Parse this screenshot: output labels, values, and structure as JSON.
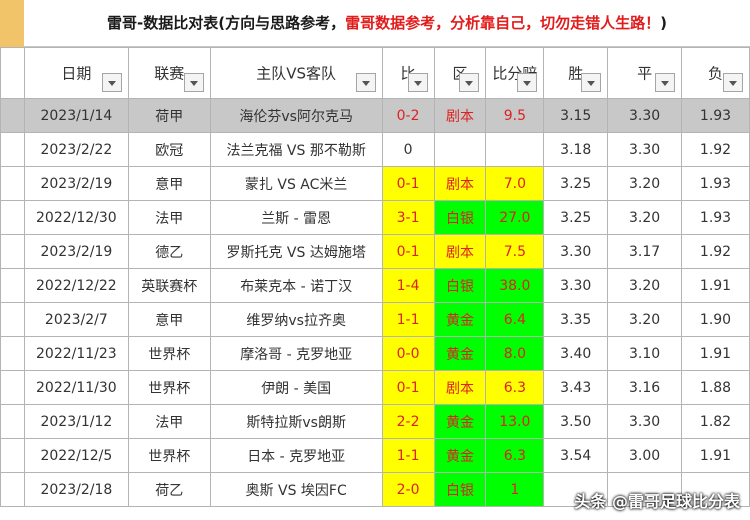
{
  "title": {
    "part1": "雷哥-数据比对表(方向与思路参考，",
    "part2": "雷哥数据参考，分析靠自己，切勿走错人生路！",
    "part3": ")"
  },
  "headers": [
    "日期",
    "联赛",
    "主队VS客队",
    "比",
    "区",
    "比分赔",
    "胜",
    "平",
    "负"
  ],
  "rows": [
    {
      "date": "2023/1/14",
      "league": "荷甲",
      "match": "海伦芬vs阿尔克马",
      "score": "0-2",
      "tag": "剧本",
      "odds": "9.5",
      "w": "3.15",
      "d": "3.30",
      "l": "1.93"
    },
    {
      "date": "2023/2/22",
      "league": "欧冠",
      "match": "法兰克福 VS 那不勒斯",
      "score": "0",
      "tag": "",
      "odds": "",
      "w": "3.18",
      "d": "3.30",
      "l": "1.92"
    },
    {
      "date": "2023/2/19",
      "league": "意甲",
      "match": "蒙扎 VS AC米兰",
      "score": "0-1",
      "tag": "剧本",
      "odds": "7.0",
      "w": "3.25",
      "d": "3.20",
      "l": "1.93"
    },
    {
      "date": "2022/12/30",
      "league": "法甲",
      "match": "兰斯 - 雷恩",
      "score": "3-1",
      "tag": "白银",
      "odds": "27.0",
      "w": "3.25",
      "d": "3.20",
      "l": "1.93"
    },
    {
      "date": "2023/2/19",
      "league": "德乙",
      "match": "罗斯托克 VS 达姆施塔",
      "score": "0-1",
      "tag": "剧本",
      "odds": "7.5",
      "w": "3.30",
      "d": "3.17",
      "l": "1.92"
    },
    {
      "date": "2022/12/22",
      "league": "英联赛杯",
      "match": "布莱克本 - 诺丁汉",
      "score": "1-4",
      "tag": "白银",
      "odds": "38.0",
      "w": "3.30",
      "d": "3.20",
      "l": "1.91"
    },
    {
      "date": "2023/2/7",
      "league": "意甲",
      "match": "维罗纳vs拉齐奥",
      "score": "1-1",
      "tag": "黄金",
      "odds": "6.4",
      "w": "3.35",
      "d": "3.20",
      "l": "1.90"
    },
    {
      "date": "2022/11/23",
      "league": "世界杯",
      "match": "摩洛哥 - 克罗地亚",
      "score": "0-0",
      "tag": "黄金",
      "odds": "8.0",
      "w": "3.40",
      "d": "3.10",
      "l": "1.91"
    },
    {
      "date": "2022/11/30",
      "league": "世界杯",
      "match": "伊朗 - 美国",
      "score": "0-1",
      "tag": "剧本",
      "odds": "6.3",
      "w": "3.43",
      "d": "3.16",
      "l": "1.88"
    },
    {
      "date": "2023/1/12",
      "league": "法甲",
      "match": "斯特拉斯vs朗斯",
      "score": "2-2",
      "tag": "黄金",
      "odds": "13.0",
      "w": "3.50",
      "d": "3.30",
      "l": "1.82"
    },
    {
      "date": "2022/12/5",
      "league": "世界杯",
      "match": "日本 - 克罗地亚",
      "score": "1-1",
      "tag": "黄金",
      "odds": "6.3",
      "w": "3.54",
      "d": "3.00",
      "l": "1.91"
    },
    {
      "date": "2023/2/18",
      "league": "荷乙",
      "match": "奥斯 VS 埃因FC",
      "score": "2-0",
      "tag": "白银",
      "odds": "1",
      "w": "",
      "d": "",
      "l": ""
    }
  ],
  "watermark": "头条 @雷哥足球比分表"
}
